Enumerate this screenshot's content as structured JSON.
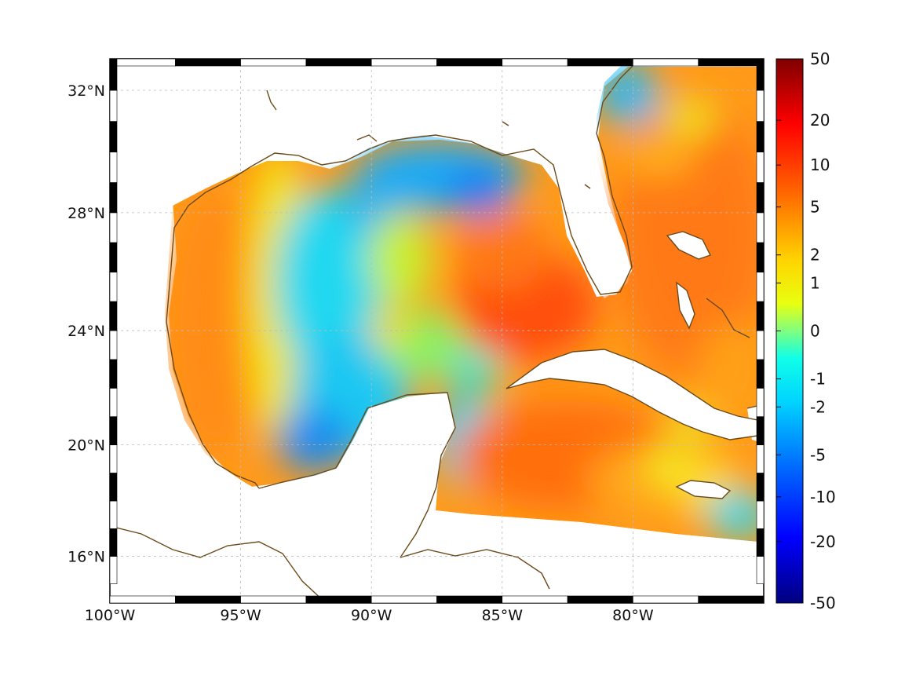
{
  "map": {
    "projection": "mercator",
    "lon_range": [
      -100,
      -75
    ],
    "lat_range": [
      14.3,
      33.0
    ],
    "grid": true,
    "colormap": "jet",
    "coastline_color": "#6b4a1a",
    "lon_ticks": [
      {
        "value": -100,
        "label": "100°W"
      },
      {
        "value": -95,
        "label": "95°W"
      },
      {
        "value": -90,
        "label": "90°W"
      },
      {
        "value": -85,
        "label": "85°W"
      },
      {
        "value": -80,
        "label": "80°W"
      }
    ],
    "lat_ticks": [
      {
        "value": 32,
        "label": "32°N"
      },
      {
        "value": 28,
        "label": "28°N"
      },
      {
        "value": 24,
        "label": "24°N"
      },
      {
        "value": 20,
        "label": "20°N"
      },
      {
        "value": 16,
        "label": "16°N"
      }
    ]
  },
  "colorbar": {
    "range": [
      -50,
      50
    ],
    "scale": "symmetric-log",
    "labels": [
      "50",
      "20",
      "10",
      "5",
      "2",
      "1",
      "0",
      "-1",
      "-2",
      "-5",
      "-10",
      "-20",
      "-50"
    ]
  },
  "field_regions": [
    {
      "name": "western-gulf",
      "value": 5
    },
    {
      "name": "central-gulf",
      "value": -1.5
    },
    {
      "name": "northern-gulf",
      "value": -4
    },
    {
      "name": "loop-current",
      "value": 7
    },
    {
      "name": "caribbean",
      "value": 5
    },
    {
      "name": "atlantic",
      "value": 4
    }
  ]
}
